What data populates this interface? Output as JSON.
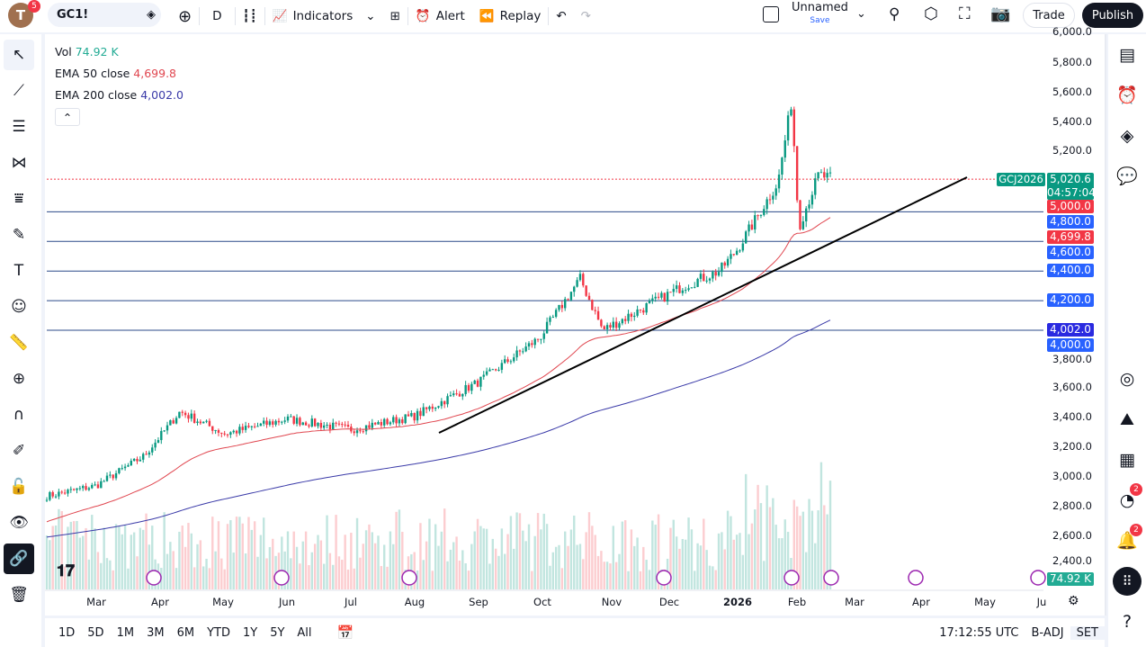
{
  "header": {
    "avatar_letter": "T",
    "avatar_badge": "5",
    "symbol": "GC1!",
    "interval": "D",
    "indicators": "Indicators",
    "alert": "Alert",
    "replay": "Replay",
    "layout_name": "Unnamed",
    "layout_save": "Save",
    "trade": "Trade",
    "publish": "Publish"
  },
  "legend": {
    "vol_label": "Vol",
    "vol_value": "74.92 K",
    "ema50_label": "EMA 50 close",
    "ema50_value": "4,699.8",
    "ema200_label": "EMA 200 close",
    "ema200_value": "4,002.0"
  },
  "price_axis": {
    "ticks": [
      "6,000.0",
      "5,800.0",
      "5,600.0",
      "5,400.0",
      "5,200.0",
      "3,800.0",
      "3,600.0",
      "3,400.0",
      "3,200.0",
      "3,000.0",
      "2,800.0",
      "2,600.0",
      "2,400.0"
    ],
    "labels": [
      {
        "text": "5,020.6",
        "sub": "04:57:04",
        "color": "#089981"
      },
      {
        "text": "5,000.0",
        "color": "#f23645"
      },
      {
        "text": "4,800.0",
        "color": "#2962ff"
      },
      {
        "text": "4,699.8",
        "color": "#f23645"
      },
      {
        "text": "4,600.0",
        "color": "#2962ff"
      },
      {
        "text": "4,400.0",
        "color": "#2962ff"
      },
      {
        "text": "4,200.0",
        "color": "#2962ff"
      },
      {
        "text": "4,002.0",
        "color": "#2a2ae0"
      },
      {
        "text": "4,000.0",
        "color": "#2962ff"
      },
      {
        "text": "74.92 K",
        "color": "#22ab94"
      }
    ],
    "symbol_tag": "GCJ2026"
  },
  "time_axis": [
    "Mar",
    "Apr",
    "May",
    "Jun",
    "Jul",
    "Aug",
    "Sep",
    "Oct",
    "Nov",
    "Dec",
    "2026",
    "Feb",
    "Mar",
    "Apr",
    "May",
    "Ju"
  ],
  "bottom": {
    "ranges": [
      "1D",
      "5D",
      "1M",
      "3M",
      "6M",
      "YTD",
      "1Y",
      "5Y",
      "All"
    ],
    "clock": "17:12:55 UTC",
    "badj": "B-ADJ",
    "set": "SET"
  },
  "right_badges": {
    "ideas": "2",
    "alerts": "2"
  },
  "colors": {
    "up": "#089981",
    "down": "#f23645",
    "ema50": "#e0464f",
    "ema200": "#3a3aa8",
    "hline": "#2b4a8a"
  },
  "chart_data": {
    "type": "candlestick",
    "ylim": [
      2400,
      6000
    ],
    "approx_path": [
      [
        "Feb",
        2880
      ],
      [
        "Mar",
        2950
      ],
      [
        "Apr",
        3150
      ],
      [
        "Apr",
        3450
      ],
      [
        "May",
        3300
      ],
      [
        "Jun",
        3400
      ],
      [
        "Jul",
        3330
      ],
      [
        "Aug",
        3420
      ],
      [
        "Sep",
        3650
      ],
      [
        "Oct",
        3950
      ],
      [
        "Oct",
        4350
      ],
      [
        "Oct",
        4000
      ],
      [
        "Nov",
        4100
      ],
      [
        "Dec",
        4300
      ],
      [
        "Dec",
        4400
      ],
      [
        "2026",
        4550
      ],
      [
        "Jan",
        5000
      ],
      [
        "Jan",
        5550
      ],
      [
        "Feb",
        4700
      ],
      [
        "Feb",
        5050
      ],
      [
        "Feb",
        5020
      ]
    ],
    "horizontal_levels": [
      5000,
      4800,
      4600,
      4400,
      4200,
      4000
    ],
    "current_price": 5020.6
  }
}
